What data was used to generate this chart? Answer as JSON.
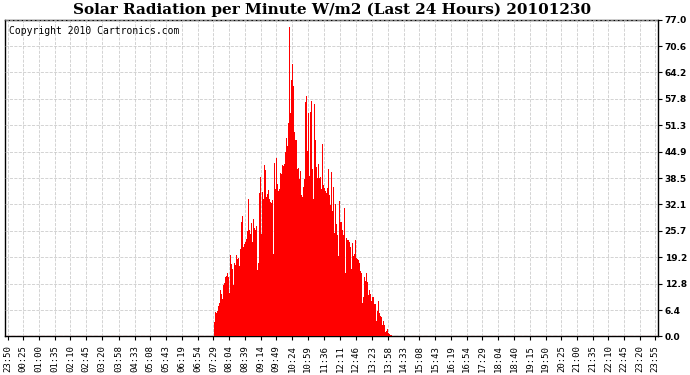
{
  "title": "Solar Radiation per Minute W/m2 (Last 24 Hours) 20101230",
  "copyright_text": "Copyright 2010 Cartronics.com",
  "ylim": [
    0.0,
    77.0
  ],
  "yticks": [
    0.0,
    6.4,
    12.8,
    19.2,
    25.7,
    32.1,
    38.5,
    44.9,
    51.3,
    57.8,
    64.2,
    70.6,
    77.0
  ],
  "bar_color": "#FF0000",
  "baseline_color": "#FF0000",
  "grid_color": "#C0C0C0",
  "background_color": "#FFFFFF",
  "title_fontsize": 11,
  "copyright_fontsize": 7,
  "tick_fontsize": 6.5,
  "x_labels": [
    "23:50",
    "00:25",
    "01:00",
    "01:35",
    "02:10",
    "02:45",
    "03:20",
    "03:58",
    "04:33",
    "05:08",
    "05:43",
    "06:19",
    "06:54",
    "07:29",
    "08:04",
    "08:39",
    "09:14",
    "09:49",
    "10:24",
    "10:59",
    "11:36",
    "12:11",
    "12:46",
    "13:23",
    "13:58",
    "14:33",
    "15:08",
    "15:43",
    "16:19",
    "16:54",
    "17:29",
    "18:04",
    "18:40",
    "19:15",
    "19:50",
    "20:25",
    "21:00",
    "21:35",
    "22:10",
    "22:45",
    "23:20",
    "23:55"
  ],
  "key_times_minutes": [
    449,
    450,
    455,
    460,
    463,
    465,
    468,
    470,
    472,
    475,
    478,
    480,
    483,
    485,
    488,
    490,
    492,
    495,
    498,
    500,
    503,
    505,
    508,
    510,
    512,
    515,
    518,
    520,
    522,
    525,
    528,
    530,
    533,
    535,
    538,
    540,
    542,
    545,
    548,
    550,
    553,
    555,
    558,
    560,
    563,
    565,
    568,
    570,
    572,
    575,
    578,
    580,
    583,
    585,
    588,
    590,
    592,
    595,
    598,
    600,
    602,
    605,
    608,
    610,
    612,
    615,
    618,
    620,
    622,
    624,
    626,
    628,
    630,
    632,
    634,
    636,
    638,
    640,
    642,
    644,
    646,
    648,
    650,
    652,
    654,
    656,
    658,
    660,
    662,
    664,
    665,
    666,
    668,
    670,
    672,
    674,
    675,
    676,
    678,
    680,
    682,
    684,
    686,
    688,
    690,
    692,
    694,
    696,
    698,
    700,
    702,
    704,
    706,
    708,
    710,
    712,
    714,
    716,
    718,
    720,
    722,
    724,
    726,
    728,
    730,
    732,
    734,
    736,
    738,
    740,
    742,
    744,
    746,
    748,
    750,
    752,
    754,
    756,
    758,
    760,
    762,
    764,
    766,
    768,
    770,
    772,
    774,
    776,
    778,
    780,
    782,
    784,
    786,
    788,
    790,
    792,
    794,
    796,
    798,
    800,
    802,
    804,
    806,
    808,
    810,
    812,
    814,
    816,
    818,
    820,
    822,
    824,
    826,
    828,
    830,
    832,
    834,
    836,
    838,
    840,
    842,
    844,
    846,
    848,
    850,
    852,
    854,
    856,
    858,
    860,
    862,
    864,
    866,
    868,
    870,
    872,
    874,
    876,
    878,
    880,
    882,
    884,
    886,
    888,
    890,
    892,
    894,
    896,
    898,
    900,
    902,
    904,
    906,
    908,
    910,
    912,
    914,
    916,
    918,
    920,
    922,
    924,
    926,
    928,
    930,
    932,
    934,
    936,
    938,
    940,
    942,
    944,
    946,
    948,
    950,
    952,
    954,
    956,
    958,
    960,
    962,
    964,
    966,
    968,
    970,
    972,
    974,
    976,
    978,
    980,
    982,
    984,
    986,
    988,
    990,
    992,
    994,
    996,
    998,
    1000,
    1002,
    1004,
    1006,
    1008,
    1010,
    1012,
    1014,
    1015,
    1020
  ],
  "key_values": [
    0,
    3.0,
    5.0,
    7.5,
    9.0,
    10.5,
    11.0,
    12.5,
    13.0,
    14.0,
    14.5,
    15.5,
    15.0,
    16.0,
    16.5,
    17.0,
    17.5,
    18.0,
    18.5,
    19.2,
    19.5,
    20.0,
    20.5,
    21.0,
    21.5,
    22.0,
    22.5,
    23.0,
    23.5,
    24.0,
    24.5,
    25.0,
    25.5,
    26.0,
    26.5,
    27.0,
    27.5,
    28.0,
    28.5,
    29.0,
    29.5,
    30.0,
    30.5,
    31.0,
    31.5,
    32.0,
    32.5,
    33.0,
    33.5,
    34.0,
    34.5,
    35.0,
    35.5,
    36.0,
    36.5,
    37.0,
    37.5,
    38.0,
    38.5,
    39.0,
    40.0,
    42.0,
    43.5,
    45.0,
    47.0,
    48.5,
    50.0,
    52.0,
    55.0,
    75.0,
    65.0,
    58.0,
    53.0,
    48.5,
    45.0,
    42.0,
    40.0,
    39.0,
    38.0,
    37.0,
    36.0,
    35.0,
    34.0,
    36.0,
    38.0,
    40.0,
    54.5,
    50.0,
    47.0,
    46.0,
    45.5,
    45.0,
    44.0,
    43.0,
    42.5,
    42.0,
    41.5,
    41.0,
    40.5,
    40.0,
    39.5,
    39.0,
    38.5,
    38.0,
    37.5,
    37.0,
    36.5,
    36.0,
    35.5,
    35.0,
    34.5,
    34.0,
    33.5,
    33.0,
    32.5,
    32.0,
    31.5,
    31.0,
    30.5,
    30.0,
    29.5,
    29.0,
    28.5,
    28.0,
    27.5,
    27.0,
    26.5,
    26.0,
    25.5,
    25.0,
    24.5,
    24.0,
    23.5,
    23.0,
    22.5,
    22.0,
    21.5,
    21.0,
    20.5,
    20.0,
    19.5,
    19.2,
    18.8,
    18.5,
    18.0,
    17.5,
    17.0,
    16.5,
    16.0,
    15.5,
    15.0,
    14.5,
    14.0,
    13.5,
    13.0,
    12.5,
    12.0,
    11.5,
    11.0,
    10.5,
    10.0,
    9.5,
    9.0,
    8.5,
    8.0,
    7.5,
    7.0,
    6.5,
    6.0,
    5.5,
    5.0,
    4.5,
    4.0,
    3.5,
    3.0,
    2.5,
    2.0,
    1.5,
    1.0,
    0.8,
    0.5,
    0.3,
    0.2,
    0.1,
    0.0,
    0.0,
    0.0,
    0.0,
    0.0,
    0.0,
    0.0,
    0.0,
    0.0,
    0.0,
    0.0,
    0.0,
    0.0,
    0.0,
    0.0,
    0.0,
    0.0,
    0.0,
    0.0,
    0.0,
    0.0,
    0.0,
    0.0,
    0.0,
    0.0,
    0.0,
    0.0,
    0.0,
    0.0,
    0.0,
    0.0,
    0.0,
    0.0,
    0.0,
    0.0,
    0.0,
    0.0,
    0.0,
    0.0,
    0.0,
    0.0,
    0.0,
    0.0,
    0.0,
    0.0,
    0.0,
    0.0,
    0.0,
    0.0,
    0.0,
    0.0,
    0.0,
    0.0,
    0.0,
    0.0,
    0.0,
    0.0,
    0.0,
    0.0,
    0.0,
    0.0,
    0.0,
    0.0,
    0.0,
    0.0,
    0.0,
    0.0,
    0.0,
    0.0,
    0.0,
    0.0,
    0.0,
    0.0,
    0.0,
    0.0,
    0.0,
    0.0,
    0.0,
    0.0,
    0.0,
    0.0,
    0.0,
    0.0,
    0.0,
    0.0
  ]
}
